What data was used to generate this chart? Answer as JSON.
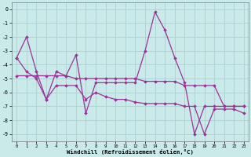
{
  "background_color": "#caeaea",
  "grid_color": "#b0d4d4",
  "line_color": "#993399",
  "xlim": [
    -0.5,
    23.5
  ],
  "ylim": [
    -9.5,
    0.5
  ],
  "yticks": [
    0,
    -1,
    -2,
    -3,
    -4,
    -5,
    -6,
    -7,
    -8,
    -9
  ],
  "xticks": [
    0,
    1,
    2,
    3,
    4,
    5,
    6,
    7,
    8,
    9,
    10,
    11,
    12,
    13,
    14,
    15,
    16,
    17,
    18,
    19,
    20,
    21,
    22,
    23
  ],
  "xlabel": "Windchill (Refroidissement éolien,°C)",
  "s1_x": [
    0,
    1,
    2,
    3,
    4,
    5,
    6,
    7,
    8,
    9,
    10,
    11,
    12,
    13,
    14,
    15,
    16,
    17,
    18,
    19,
    20,
    21,
    22,
    23
  ],
  "s1_y": [
    -3.5,
    -2.0,
    -4.5,
    -6.5,
    -4.5,
    -4.8,
    -3.3,
    -7.5,
    -5.3,
    -5.3,
    -5.3,
    -5.3,
    -5.3,
    -3.0,
    -0.2,
    -1.5,
    -3.5,
    -5.3,
    -9.0,
    -7.0,
    -7.0,
    -7.0,
    -7.0,
    -7.0
  ],
  "s2_x": [
    0,
    1,
    2,
    3,
    4,
    5,
    6,
    7,
    8,
    9,
    10,
    11,
    12,
    13,
    14,
    15,
    16,
    17,
    18,
    19,
    20,
    21,
    22,
    23
  ],
  "s2_y": [
    -4.8,
    -4.8,
    -4.8,
    -4.8,
    -4.8,
    -4.8,
    -5.0,
    -5.0,
    -5.0,
    -5.0,
    -5.0,
    -5.0,
    -5.0,
    -5.2,
    -5.2,
    -5.2,
    -5.2,
    -5.5,
    -5.5,
    -5.5,
    -5.5,
    -7.0,
    -7.0,
    -7.0
  ],
  "s3_x": [
    0,
    1,
    2,
    3,
    4,
    5,
    6,
    7,
    8,
    9,
    10,
    11,
    12,
    13,
    14,
    15,
    16,
    17,
    18,
    19,
    20,
    21,
    22,
    23
  ],
  "s3_y": [
    -3.5,
    -4.5,
    -5.0,
    -6.5,
    -5.5,
    -5.5,
    -5.5,
    -6.5,
    -6.0,
    -6.3,
    -6.5,
    -6.5,
    -6.7,
    -6.8,
    -6.8,
    -6.8,
    -6.8,
    -7.0,
    -7.0,
    -9.0,
    -7.2,
    -7.2,
    -7.2,
    -7.5
  ]
}
